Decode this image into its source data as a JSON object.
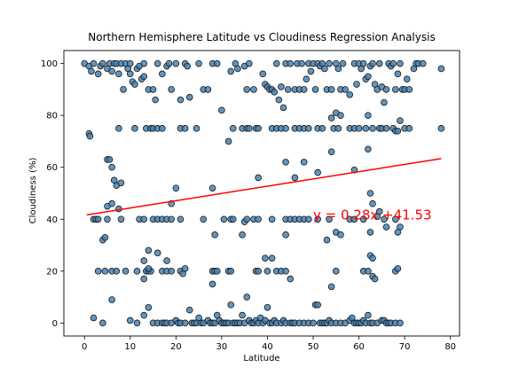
{
  "chart_data": {
    "type": "scatter",
    "title": "Northern Hemisphere Latitude vs Cloudiness Regression Analysis",
    "xlabel": "Latitude",
    "ylabel": "Cloudiness (%)",
    "xlim": [
      -4.5,
      82
    ],
    "ylim": [
      -5,
      105
    ],
    "xticks": [
      0,
      10,
      20,
      30,
      40,
      50,
      60,
      70,
      80
    ],
    "yticks": [
      0,
      20,
      40,
      60,
      80,
      100
    ],
    "grid": false,
    "point_color": "#4682b4",
    "regression": {
      "slope": 0.28,
      "intercept": 41.53,
      "x_range": [
        0.5,
        78
      ],
      "color": "#ff0000",
      "equation": "y = 0.28x +41.53",
      "label_at": [
        50,
        40
      ]
    },
    "points": [
      [
        0,
        100
      ],
      [
        1,
        99
      ],
      [
        1.5,
        97
      ],
      [
        2,
        100
      ],
      [
        3,
        96
      ],
      [
        3.5,
        99
      ],
      [
        4,
        100
      ],
      [
        5,
        98
      ],
      [
        5.5,
        100
      ],
      [
        6,
        97
      ],
      [
        6.5,
        100
      ],
      [
        7,
        100
      ],
      [
        7.5,
        96
      ],
      [
        8,
        100
      ],
      [
        8.5,
        90
      ],
      [
        9,
        100
      ],
      [
        9.5,
        98
      ],
      [
        10,
        96
      ],
      [
        10,
        100
      ],
      [
        10.5,
        93
      ],
      [
        11,
        92
      ],
      [
        11.5,
        98
      ],
      [
        12,
        99
      ],
      [
        12.5,
        94
      ],
      [
        13,
        100
      ],
      [
        13,
        95
      ],
      [
        14,
        90
      ],
      [
        15,
        90
      ],
      [
        15.5,
        86
      ],
      [
        16,
        100
      ],
      [
        17,
        96
      ],
      [
        18,
        99
      ],
      [
        18.5,
        100
      ],
      [
        19,
        90
      ],
      [
        20,
        100
      ],
      [
        21,
        86
      ],
      [
        22,
        100
      ],
      [
        22.5,
        99
      ],
      [
        23,
        87
      ],
      [
        25,
        100
      ],
      [
        26,
        90
      ],
      [
        27,
        90
      ],
      [
        28,
        100
      ],
      [
        29,
        100
      ],
      [
        32,
        97
      ],
      [
        33,
        100
      ],
      [
        33.5,
        98
      ],
      [
        35,
        99
      ],
      [
        35.5,
        90
      ],
      [
        36,
        100
      ],
      [
        37,
        90
      ],
      [
        39,
        96
      ],
      [
        39.5,
        92
      ],
      [
        40,
        91
      ],
      [
        40.5,
        90
      ],
      [
        41,
        90
      ],
      [
        41.5,
        89
      ],
      [
        42,
        100
      ],
      [
        42.5,
        86
      ],
      [
        43,
        91
      ],
      [
        43.5,
        83
      ],
      [
        44,
        100
      ],
      [
        44.5,
        90
      ],
      [
        45,
        100
      ],
      [
        46,
        90
      ],
      [
        46.5,
        100
      ],
      [
        47,
        90
      ],
      [
        47.5,
        100
      ],
      [
        48,
        90
      ],
      [
        48.5,
        94
      ],
      [
        49,
        100
      ],
      [
        49.5,
        97
      ],
      [
        50,
        100
      ],
      [
        50.5,
        90
      ],
      [
        51,
        100
      ],
      [
        51.5,
        99
      ],
      [
        52,
        100
      ],
      [
        52.5,
        98
      ],
      [
        53,
        90
      ],
      [
        53.5,
        100
      ],
      [
        54,
        90
      ],
      [
        55,
        100
      ],
      [
        55.5,
        98
      ],
      [
        56,
        90
      ],
      [
        56.5,
        100
      ],
      [
        57,
        90
      ],
      [
        58,
        88
      ],
      [
        59,
        100
      ],
      [
        59.5,
        92
      ],
      [
        60,
        100
      ],
      [
        60.5,
        98
      ],
      [
        61,
        100
      ],
      [
        61.5,
        94
      ],
      [
        62,
        95
      ],
      [
        62.5,
        99
      ],
      [
        63,
        100
      ],
      [
        63.5,
        92
      ],
      [
        64,
        90
      ],
      [
        64.5,
        100
      ],
      [
        65,
        91
      ],
      [
        65.5,
        85
      ],
      [
        66,
        90
      ],
      [
        66.5,
        100
      ],
      [
        67,
        99
      ],
      [
        67.5,
        100
      ],
      [
        68,
        90
      ],
      [
        68.5,
        96
      ],
      [
        69,
        100
      ],
      [
        69.5,
        90
      ],
      [
        70,
        90
      ],
      [
        70.5,
        94
      ],
      [
        71,
        90
      ],
      [
        72,
        98
      ],
      [
        72.5,
        100
      ],
      [
        73,
        100
      ],
      [
        74,
        100
      ],
      [
        78,
        98
      ],
      [
        1,
        73
      ],
      [
        1.2,
        72
      ],
      [
        5,
        63
      ],
      [
        5.5,
        63
      ],
      [
        6,
        60
      ],
      [
        6.5,
        55
      ],
      [
        7,
        53
      ],
      [
        8,
        54
      ],
      [
        7.5,
        75
      ],
      [
        11,
        75
      ],
      [
        13.5,
        75
      ],
      [
        14.5,
        75
      ],
      [
        15,
        75
      ],
      [
        16,
        75
      ],
      [
        17,
        75
      ],
      [
        21,
        75
      ],
      [
        22,
        75
      ],
      [
        24.5,
        75
      ],
      [
        30,
        82
      ],
      [
        31.5,
        70
      ],
      [
        32.5,
        75
      ],
      [
        34.5,
        75
      ],
      [
        35.5,
        75
      ],
      [
        36,
        75
      ],
      [
        37.5,
        75
      ],
      [
        38,
        75
      ],
      [
        41,
        75
      ],
      [
        42,
        75
      ],
      [
        43,
        75
      ],
      [
        44,
        75
      ],
      [
        46,
        75
      ],
      [
        47,
        75
      ],
      [
        48,
        75
      ],
      [
        49,
        75
      ],
      [
        51,
        75
      ],
      [
        52,
        75
      ],
      [
        54,
        79
      ],
      [
        54.5,
        75
      ],
      [
        55,
        81
      ],
      [
        55.5,
        75
      ],
      [
        56,
        80
      ],
      [
        58,
        75
      ],
      [
        59,
        75
      ],
      [
        60,
        75
      ],
      [
        61.5,
        75
      ],
      [
        62,
        80
      ],
      [
        63,
        75
      ],
      [
        64.5,
        75
      ],
      [
        65,
        75
      ],
      [
        66,
        75
      ],
      [
        67.5,
        75
      ],
      [
        68,
        74
      ],
      [
        68.5,
        74
      ],
      [
        69,
        78
      ],
      [
        70,
        75
      ],
      [
        71,
        75
      ],
      [
        78,
        75
      ],
      [
        54,
        66
      ],
      [
        62,
        67
      ],
      [
        44,
        62
      ],
      [
        48,
        62
      ],
      [
        51,
        58
      ],
      [
        59,
        59
      ],
      [
        46,
        56
      ],
      [
        38,
        56
      ],
      [
        28,
        52
      ],
      [
        20,
        52
      ],
      [
        19,
        46
      ],
      [
        2,
        40
      ],
      [
        2.5,
        40
      ],
      [
        3,
        40
      ],
      [
        5,
        40
      ],
      [
        5,
        45
      ],
      [
        6,
        46
      ],
      [
        7.5,
        44
      ],
      [
        8,
        40
      ],
      [
        12,
        40
      ],
      [
        13,
        40
      ],
      [
        15,
        40
      ],
      [
        16,
        40
      ],
      [
        17,
        40
      ],
      [
        18,
        40
      ],
      [
        19,
        40
      ],
      [
        21,
        40
      ],
      [
        26,
        40
      ],
      [
        30.5,
        40
      ],
      [
        32,
        40
      ],
      [
        32.5,
        40
      ],
      [
        35,
        39
      ],
      [
        35.5,
        40
      ],
      [
        37,
        40
      ],
      [
        38,
        40
      ],
      [
        41,
        40
      ],
      [
        44,
        40
      ],
      [
        45,
        40
      ],
      [
        46,
        40
      ],
      [
        47,
        40
      ],
      [
        48,
        40
      ],
      [
        49,
        40
      ],
      [
        51,
        40
      ],
      [
        53.5,
        40
      ],
      [
        58,
        40
      ],
      [
        59,
        40
      ],
      [
        61,
        40
      ],
      [
        62.5,
        50
      ],
      [
        63,
        46
      ],
      [
        64,
        41
      ],
      [
        64.5,
        43
      ],
      [
        65.5,
        40
      ],
      [
        68,
        40
      ],
      [
        69,
        37
      ],
      [
        4,
        32
      ],
      [
        4.5,
        33
      ],
      [
        28.5,
        34
      ],
      [
        34.5,
        34
      ],
      [
        44,
        34
      ],
      [
        53,
        32
      ],
      [
        55,
        35
      ],
      [
        56,
        34
      ],
      [
        62.5,
        35
      ],
      [
        66,
        37
      ],
      [
        68.5,
        35
      ],
      [
        3,
        20
      ],
      [
        4.5,
        20
      ],
      [
        6,
        20
      ],
      [
        7,
        20
      ],
      [
        9,
        20
      ],
      [
        11.5,
        20
      ],
      [
        13.5,
        20
      ],
      [
        14,
        20
      ],
      [
        14.5,
        20
      ],
      [
        17,
        20
      ],
      [
        18,
        20
      ],
      [
        19,
        20
      ],
      [
        21,
        20
      ],
      [
        22,
        21
      ],
      [
        28,
        20
      ],
      [
        28.5,
        20
      ],
      [
        29,
        20
      ],
      [
        31.5,
        20
      ],
      [
        32,
        20
      ],
      [
        37.5,
        20
      ],
      [
        38,
        20
      ],
      [
        39.5,
        25
      ],
      [
        40,
        20
      ],
      [
        41,
        25
      ],
      [
        42,
        20
      ],
      [
        43,
        20
      ],
      [
        44,
        20
      ],
      [
        54,
        14
      ],
      [
        61,
        20
      ],
      [
        62,
        20
      ],
      [
        62.5,
        26
      ],
      [
        63,
        25
      ],
      [
        63,
        18
      ],
      [
        63.5,
        17
      ],
      [
        68,
        20
      ],
      [
        68.5,
        21
      ],
      [
        13,
        24
      ],
      [
        14,
        28
      ],
      [
        16,
        27
      ],
      [
        18,
        24
      ],
      [
        13,
        17
      ],
      [
        14,
        21
      ],
      [
        21.5,
        19
      ],
      [
        28,
        15
      ],
      [
        45,
        17
      ],
      [
        55,
        20
      ],
      [
        2,
        2
      ],
      [
        4,
        0
      ],
      [
        6,
        9
      ],
      [
        10,
        1
      ],
      [
        11.5,
        0
      ],
      [
        13,
        3
      ],
      [
        14,
        6
      ],
      [
        15,
        0
      ],
      [
        16,
        0
      ],
      [
        17,
        0
      ],
      [
        17.5,
        0
      ],
      [
        18,
        0
      ],
      [
        19,
        0
      ],
      [
        20,
        1
      ],
      [
        20.5,
        0
      ],
      [
        21,
        0
      ],
      [
        22,
        0
      ],
      [
        23,
        5
      ],
      [
        23.5,
        0
      ],
      [
        24,
        0
      ],
      [
        24.5,
        0
      ],
      [
        25,
        2
      ],
      [
        25.5,
        0
      ],
      [
        26,
        0
      ],
      [
        27,
        1
      ],
      [
        27.5,
        0
      ],
      [
        28,
        0
      ],
      [
        28.5,
        0
      ],
      [
        29,
        3
      ],
      [
        29.5,
        1
      ],
      [
        30,
        0
      ],
      [
        30.5,
        0
      ],
      [
        31,
        0
      ],
      [
        31.5,
        0
      ],
      [
        32,
        7
      ],
      [
        32.5,
        0
      ],
      [
        33,
        0
      ],
      [
        33.5,
        0
      ],
      [
        34,
        0
      ],
      [
        34.5,
        3
      ],
      [
        35,
        0
      ],
      [
        35.5,
        10
      ],
      [
        36,
        1
      ],
      [
        36.5,
        0
      ],
      [
        37,
        0
      ],
      [
        37.5,
        1
      ],
      [
        38,
        0
      ],
      [
        38.5,
        2
      ],
      [
        39,
        0
      ],
      [
        39.5,
        1
      ],
      [
        40,
        6
      ],
      [
        40.5,
        0
      ],
      [
        41,
        0
      ],
      [
        41.5,
        1
      ],
      [
        42,
        0
      ],
      [
        43,
        0
      ],
      [
        43.5,
        1
      ],
      [
        44,
        0
      ],
      [
        45,
        0
      ],
      [
        45.5,
        0
      ],
      [
        46,
        0
      ],
      [
        47,
        0
      ],
      [
        48,
        0
      ],
      [
        49,
        0
      ],
      [
        50,
        0
      ],
      [
        50.5,
        7
      ],
      [
        51,
        7
      ],
      [
        51.5,
        0
      ],
      [
        52,
        0
      ],
      [
        52.5,
        0
      ],
      [
        53,
        0
      ],
      [
        53.5,
        1
      ],
      [
        54,
        0
      ],
      [
        55,
        0
      ],
      [
        56,
        0
      ],
      [
        57,
        0
      ],
      [
        58,
        1
      ],
      [
        58.5,
        2
      ],
      [
        59,
        0
      ],
      [
        59.5,
        0
      ],
      [
        60,
        0
      ],
      [
        60.5,
        0
      ],
      [
        61,
        1
      ],
      [
        61.5,
        0
      ],
      [
        62,
        3
      ],
      [
        62.5,
        0
      ],
      [
        63,
        0
      ],
      [
        64,
        0
      ],
      [
        65,
        1
      ],
      [
        65.5,
        1
      ],
      [
        66,
        0
      ],
      [
        66.5,
        0
      ],
      [
        67,
        0
      ],
      [
        68,
        0
      ],
      [
        69,
        0
      ]
    ]
  }
}
